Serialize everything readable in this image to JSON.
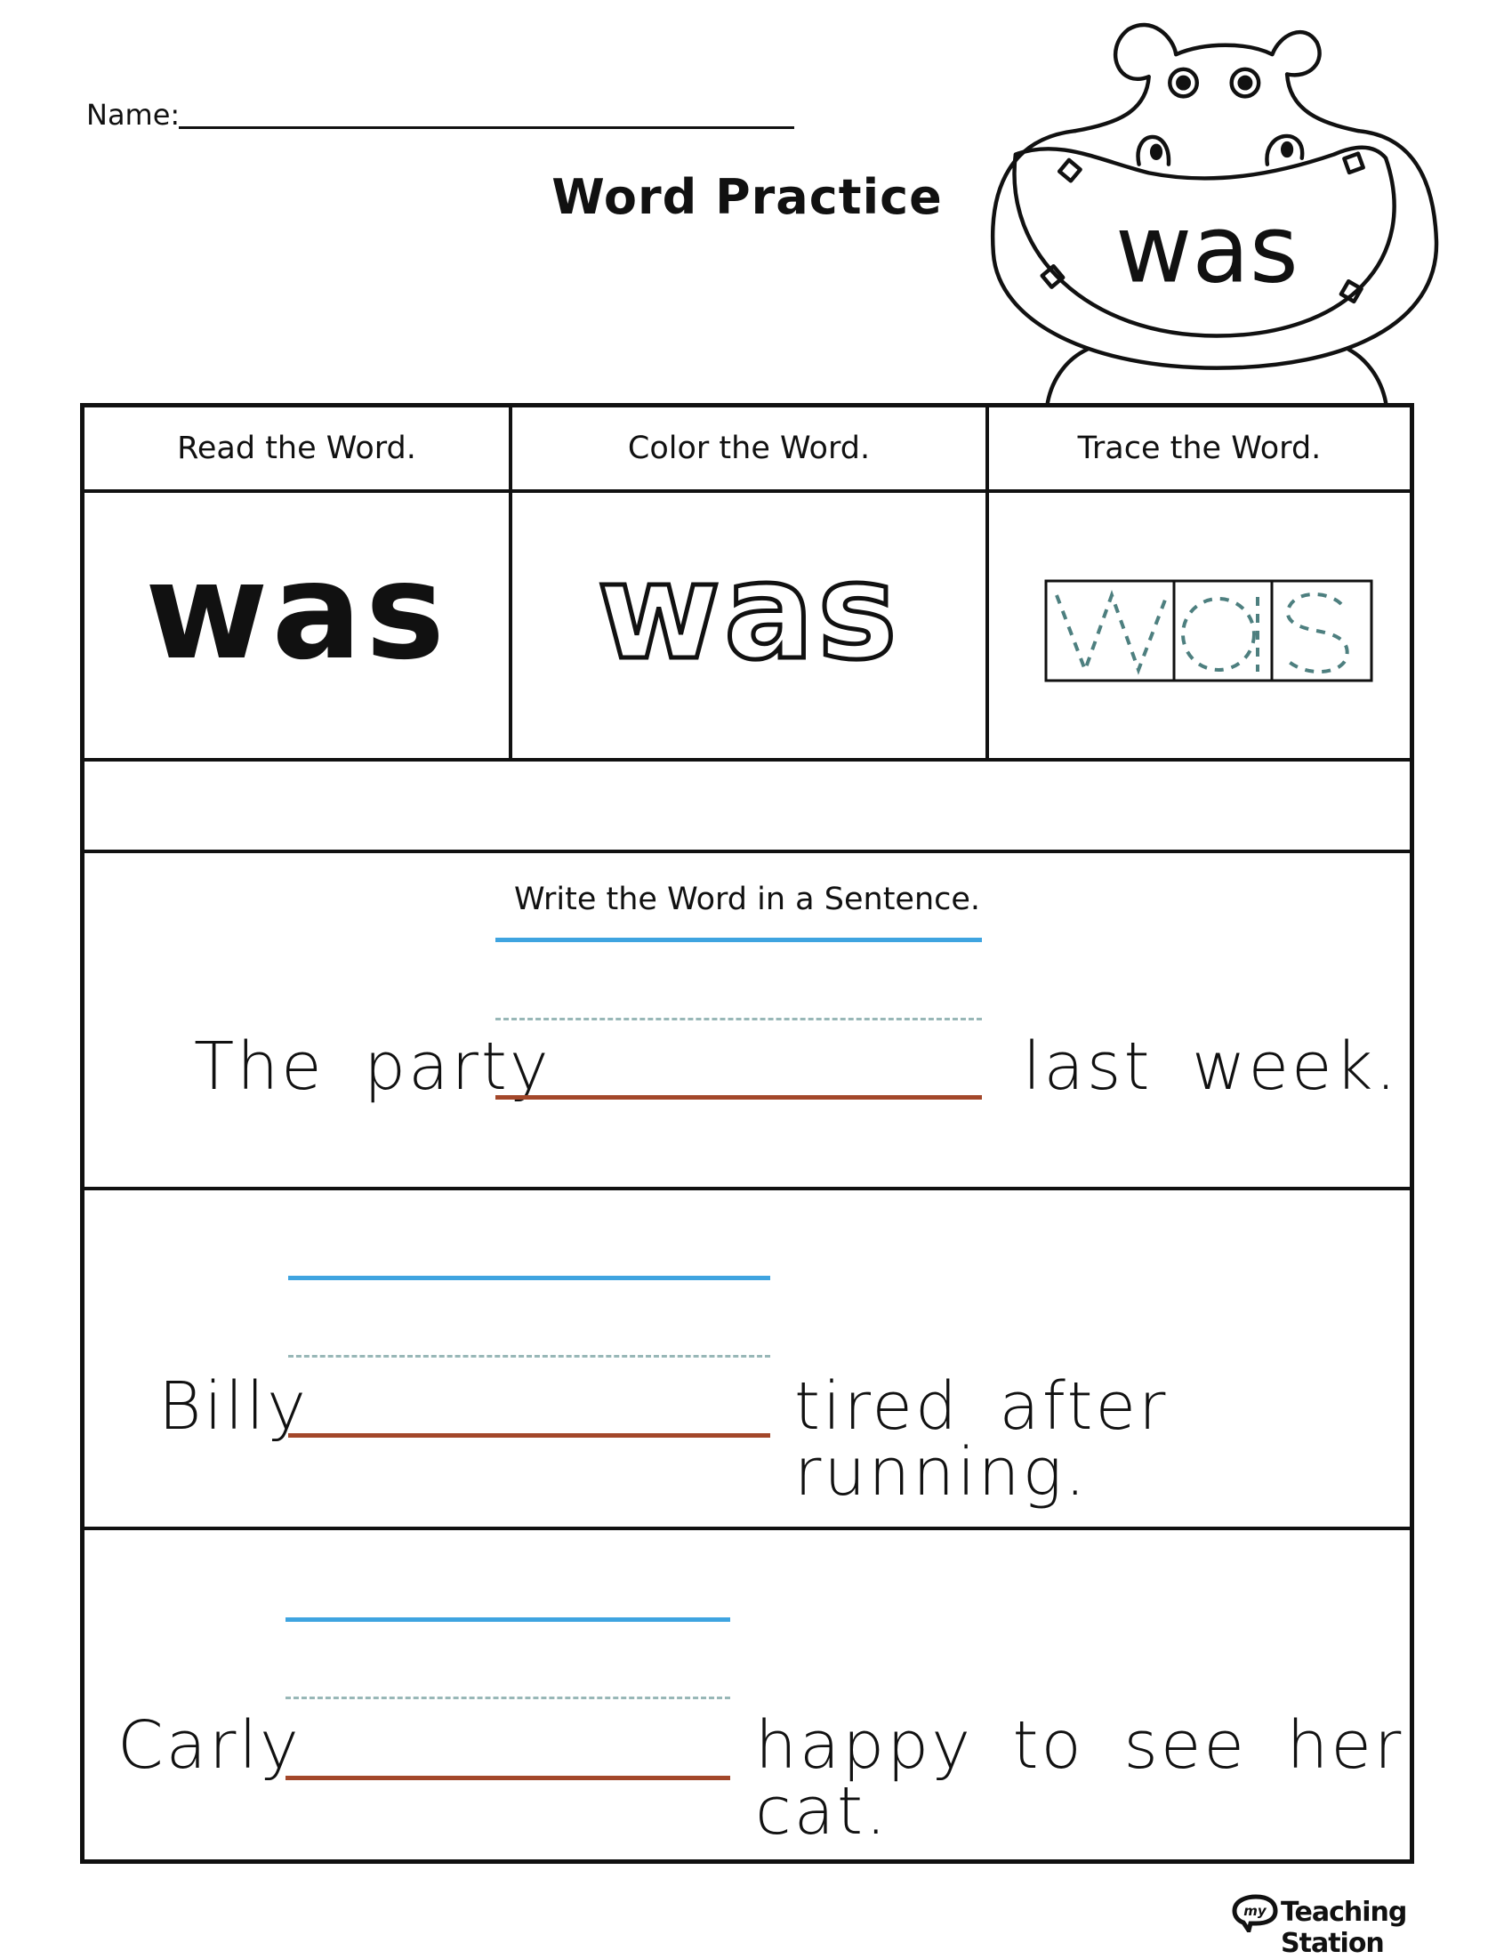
{
  "header": {
    "name_label": "Name:",
    "title": "Word Practice",
    "hippo_word": "was"
  },
  "table": {
    "columns": [
      {
        "label": "Read the Word.",
        "word": "was"
      },
      {
        "label": "Color the Word.",
        "word": "was"
      },
      {
        "label": "Trace the Word.",
        "word": "was"
      }
    ],
    "sentence_header": "Write the Word in a Sentence.",
    "sentences": [
      {
        "before": "The party",
        "after": "last week."
      },
      {
        "before": "Billy",
        "after": "tired after running."
      },
      {
        "before": "Carly",
        "after": "happy to see her cat."
      }
    ]
  },
  "colors": {
    "top_line": "#3fa4e0",
    "mid_dashed_line": "#98b7b7",
    "base_line": "#a3472a",
    "trace_dashes": "#4d7f7f"
  },
  "footer": {
    "logo_mark": "my",
    "logo_text": "Teaching Station"
  }
}
